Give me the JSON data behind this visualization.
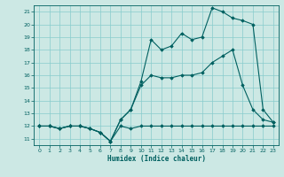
{
  "xlabel": "Humidex (Indice chaleur)",
  "bg_color": "#cce8e4",
  "line_color": "#006060",
  "grid_color": "#88cccc",
  "xlim": [
    -0.5,
    23.5
  ],
  "ylim": [
    10.5,
    21.5
  ],
  "xticks": [
    0,
    1,
    2,
    3,
    4,
    5,
    6,
    7,
    8,
    9,
    10,
    11,
    12,
    13,
    14,
    15,
    16,
    17,
    18,
    19,
    20,
    21,
    22,
    23
  ],
  "yticks": [
    11,
    12,
    13,
    14,
    15,
    16,
    17,
    18,
    19,
    20,
    21
  ],
  "line1_x": [
    0,
    1,
    2,
    3,
    4,
    5,
    6,
    7,
    8,
    9,
    10,
    11,
    12,
    13,
    14,
    15,
    16,
    17,
    18,
    19,
    20,
    21,
    22,
    23
  ],
  "line1_y": [
    12,
    12,
    11.8,
    12,
    12,
    11.8,
    11.5,
    10.8,
    12,
    11.8,
    12,
    12,
    12,
    12,
    12,
    12,
    12,
    12,
    12,
    12,
    12,
    12,
    12,
    12
  ],
  "line2_x": [
    0,
    1,
    2,
    3,
    4,
    5,
    6,
    7,
    8,
    9,
    10,
    11,
    12,
    13,
    14,
    15,
    16,
    17,
    18,
    19,
    20,
    21,
    22,
    23
  ],
  "line2_y": [
    12,
    12,
    11.8,
    12,
    12,
    11.8,
    11.5,
    10.8,
    12.5,
    13.3,
    15.2,
    16.0,
    15.8,
    15.8,
    16.0,
    16.0,
    16.2,
    17.0,
    17.5,
    18.0,
    15.2,
    13.3,
    12.5,
    12.3
  ],
  "line3_x": [
    0,
    1,
    2,
    3,
    4,
    5,
    6,
    7,
    8,
    9,
    10,
    11,
    12,
    13,
    14,
    15,
    16,
    17,
    18,
    19,
    20,
    21,
    22,
    23
  ],
  "line3_y": [
    12,
    12,
    11.8,
    12,
    12,
    11.8,
    11.5,
    10.8,
    12.5,
    13.3,
    15.5,
    18.8,
    18.0,
    18.3,
    19.3,
    18.8,
    19.0,
    21.3,
    21.0,
    20.5,
    20.3,
    20.0,
    13.3,
    12.3
  ]
}
